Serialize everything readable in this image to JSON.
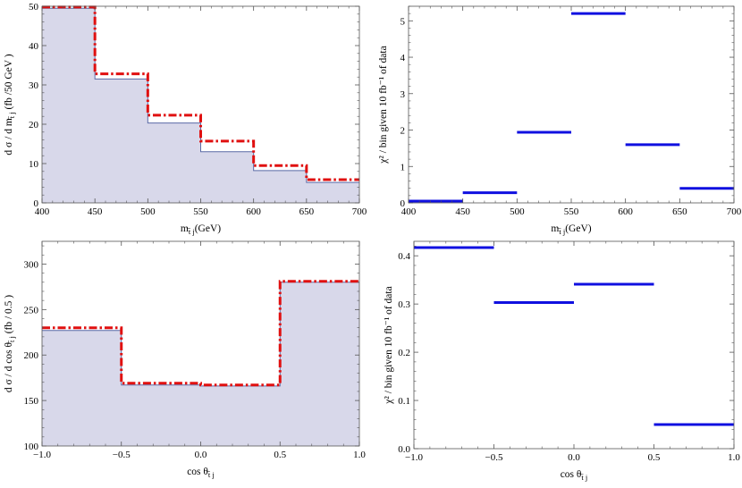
{
  "chart_data": [
    {
      "type": "step",
      "xlabel": "m_{̅t j}(GeV)",
      "xlabel_main": "m",
      "xlabel_sub": "̅t j",
      "xlabel_suffix": "(GeV)",
      "ylabel": "d σ / d m_{̅t j} (fb /50 GeV )",
      "ylabel_pre": "d σ / d m",
      "ylabel_sub": "̅t j",
      "ylabel_post": " (fb /50 GeV )",
      "xlim": [
        400,
        700
      ],
      "ylim": [
        0,
        50
      ],
      "xticks": [
        "400",
        "450",
        "500",
        "550",
        "600",
        "650",
        "700"
      ],
      "yticks": [
        "0",
        "10",
        "20",
        "30",
        "40",
        "50"
      ],
      "bin_edges": [
        400,
        450,
        500,
        550,
        600,
        650,
        700
      ],
      "series": [
        {
          "style": "filled-thin",
          "color": "#5a6aa6",
          "fill": "#d8d8ea",
          "values": [
            49.5,
            31.5,
            20.3,
            13.0,
            8.2,
            5.2
          ]
        },
        {
          "style": "dash-dot",
          "color": "#e01010",
          "values": [
            49.8,
            32.8,
            22.3,
            15.7,
            9.5,
            5.9
          ]
        }
      ]
    },
    {
      "type": "bin-segments",
      "xlabel": "m_{̅t j}(GeV)",
      "xlabel_main": "m",
      "xlabel_sub": "̅t j",
      "xlabel_suffix": "(GeV)",
      "ylabel": "χ² / bin given 10 fb⁻¹ of data",
      "xlim": [
        400,
        700
      ],
      "ylim": [
        0,
        5.4
      ],
      "xticks": [
        "400",
        "450",
        "500",
        "550",
        "600",
        "650",
        "700"
      ],
      "yticks": [
        "0",
        "1",
        "2",
        "3",
        "4",
        "5"
      ],
      "bin_edges": [
        400,
        450,
        500,
        550,
        600,
        650,
        700
      ],
      "series": [
        {
          "color": "#1010e0",
          "values": [
            0.05,
            0.28,
            1.94,
            5.2,
            1.6,
            0.4
          ]
        }
      ]
    },
    {
      "type": "step",
      "xlabel": "cos θ_{̅t j}",
      "xlabel_main": "cos θ",
      "xlabel_sub": "̅t j",
      "xlabel_suffix": "",
      "ylabel": "d σ / d cos θ_{̅t j} (fb / 0.5 )",
      "ylabel_pre": "d σ / d cos θ",
      "ylabel_sub": "̅t j",
      "ylabel_post": " (fb / 0.5 )",
      "xlim": [
        -1.0,
        1.0
      ],
      "ylim": [
        100,
        325
      ],
      "xticks": [
        "−1.0",
        "−0.5",
        "0.0",
        "0.5",
        "1.0"
      ],
      "yticks": [
        "100",
        "150",
        "200",
        "250",
        "300"
      ],
      "bin_edges": [
        -1.0,
        -0.5,
        0.0,
        0.5,
        1.0
      ],
      "series": [
        {
          "style": "filled-thin",
          "color": "#5a6aa6",
          "fill": "#d8d8ea",
          "values": [
            227,
            167,
            166,
            280
          ]
        },
        {
          "style": "dash-dot",
          "color": "#e01010",
          "values": [
            230,
            169,
            167,
            281
          ]
        }
      ]
    },
    {
      "type": "bin-segments",
      "xlabel": "cos θ_{̅t j}",
      "xlabel_main": "cos θ",
      "xlabel_sub": "̅t j",
      "xlabel_suffix": "",
      "ylabel": "χ² / bin given 10 fb⁻¹ of data",
      "xlim": [
        -1.0,
        1.0
      ],
      "ylim": [
        0,
        0.43
      ],
      "xticks": [
        "−1.0",
        "−0.5",
        "0.0",
        "0.5",
        "1.0"
      ],
      "yticks": [
        "0.0",
        "0.1",
        "0.2",
        "0.3",
        "0.4"
      ],
      "bin_edges": [
        -1.0,
        -0.5,
        0.0,
        0.5,
        1.0
      ],
      "series": [
        {
          "color": "#1010e0",
          "values": [
            0.417,
            0.303,
            0.341,
            0.05
          ]
        }
      ]
    }
  ]
}
